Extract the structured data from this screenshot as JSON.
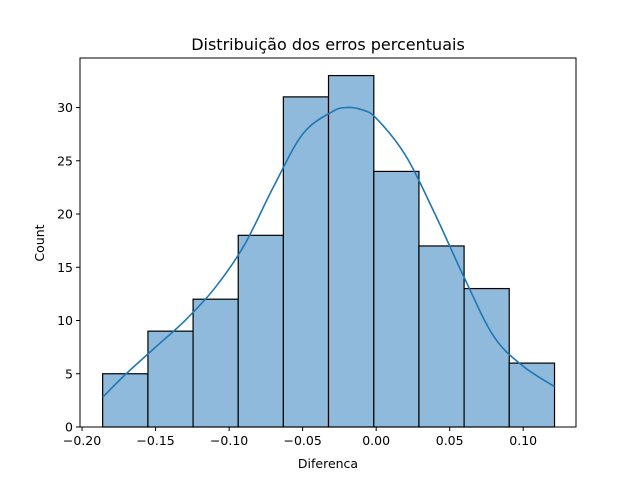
{
  "chart_data": {
    "type": "bar",
    "title": "Distribuição dos erros percentuais",
    "xlabel": "Diferenca",
    "ylabel": "Count",
    "xlim": [
      -0.2014,
      0.1359
    ],
    "ylim": [
      0,
      34.65
    ],
    "bins": [
      {
        "x0": -0.186,
        "x1": -0.1552,
        "count": 5
      },
      {
        "x0": -0.1552,
        "x1": -0.1245,
        "count": 9
      },
      {
        "x0": -0.1245,
        "x1": -0.0938,
        "count": 12
      },
      {
        "x0": -0.0938,
        "x1": -0.0631,
        "count": 18
      },
      {
        "x0": -0.0631,
        "x1": -0.0324,
        "count": 31
      },
      {
        "x0": -0.0324,
        "x1": -0.0016,
        "count": 33
      },
      {
        "x0": -0.0016,
        "x1": 0.0291,
        "count": 24
      },
      {
        "x0": 0.0291,
        "x1": 0.0598,
        "count": 17
      },
      {
        "x0": 0.0598,
        "x1": 0.0905,
        "count": 13
      },
      {
        "x0": 0.0905,
        "x1": 0.1213,
        "count": 6
      }
    ],
    "kde": {
      "x": [
        -0.186,
        -0.17,
        -0.15,
        -0.13,
        -0.11,
        -0.09,
        -0.07,
        -0.05,
        -0.03,
        -0.02,
        -0.01,
        0.0,
        0.02,
        0.04,
        0.06,
        0.08,
        0.1,
        0.1213
      ],
      "y": [
        2.8,
        5.0,
        7.5,
        10.0,
        13.0,
        17.0,
        22.5,
        27.5,
        29.6,
        30.0,
        29.8,
        29.0,
        25.5,
        20.0,
        14.0,
        8.5,
        5.7,
        3.8
      ]
    },
    "xticks": [
      -0.2,
      -0.15,
      -0.1,
      -0.05,
      0.0,
      0.05,
      0.1
    ],
    "xtick_labels": [
      "−0.20",
      "−0.15",
      "−0.10",
      "−0.05",
      "0.00",
      "0.05",
      "0.10"
    ],
    "yticks": [
      0,
      5,
      10,
      15,
      20,
      25,
      30
    ],
    "ytick_labels": [
      "0",
      "5",
      "10",
      "15",
      "20",
      "25",
      "30"
    ],
    "grid": false,
    "colors": {
      "bar_fill": "#8fbadb",
      "bar_edge": "#000000",
      "kde_line": "#1f77b4",
      "axes": "#000000"
    }
  }
}
